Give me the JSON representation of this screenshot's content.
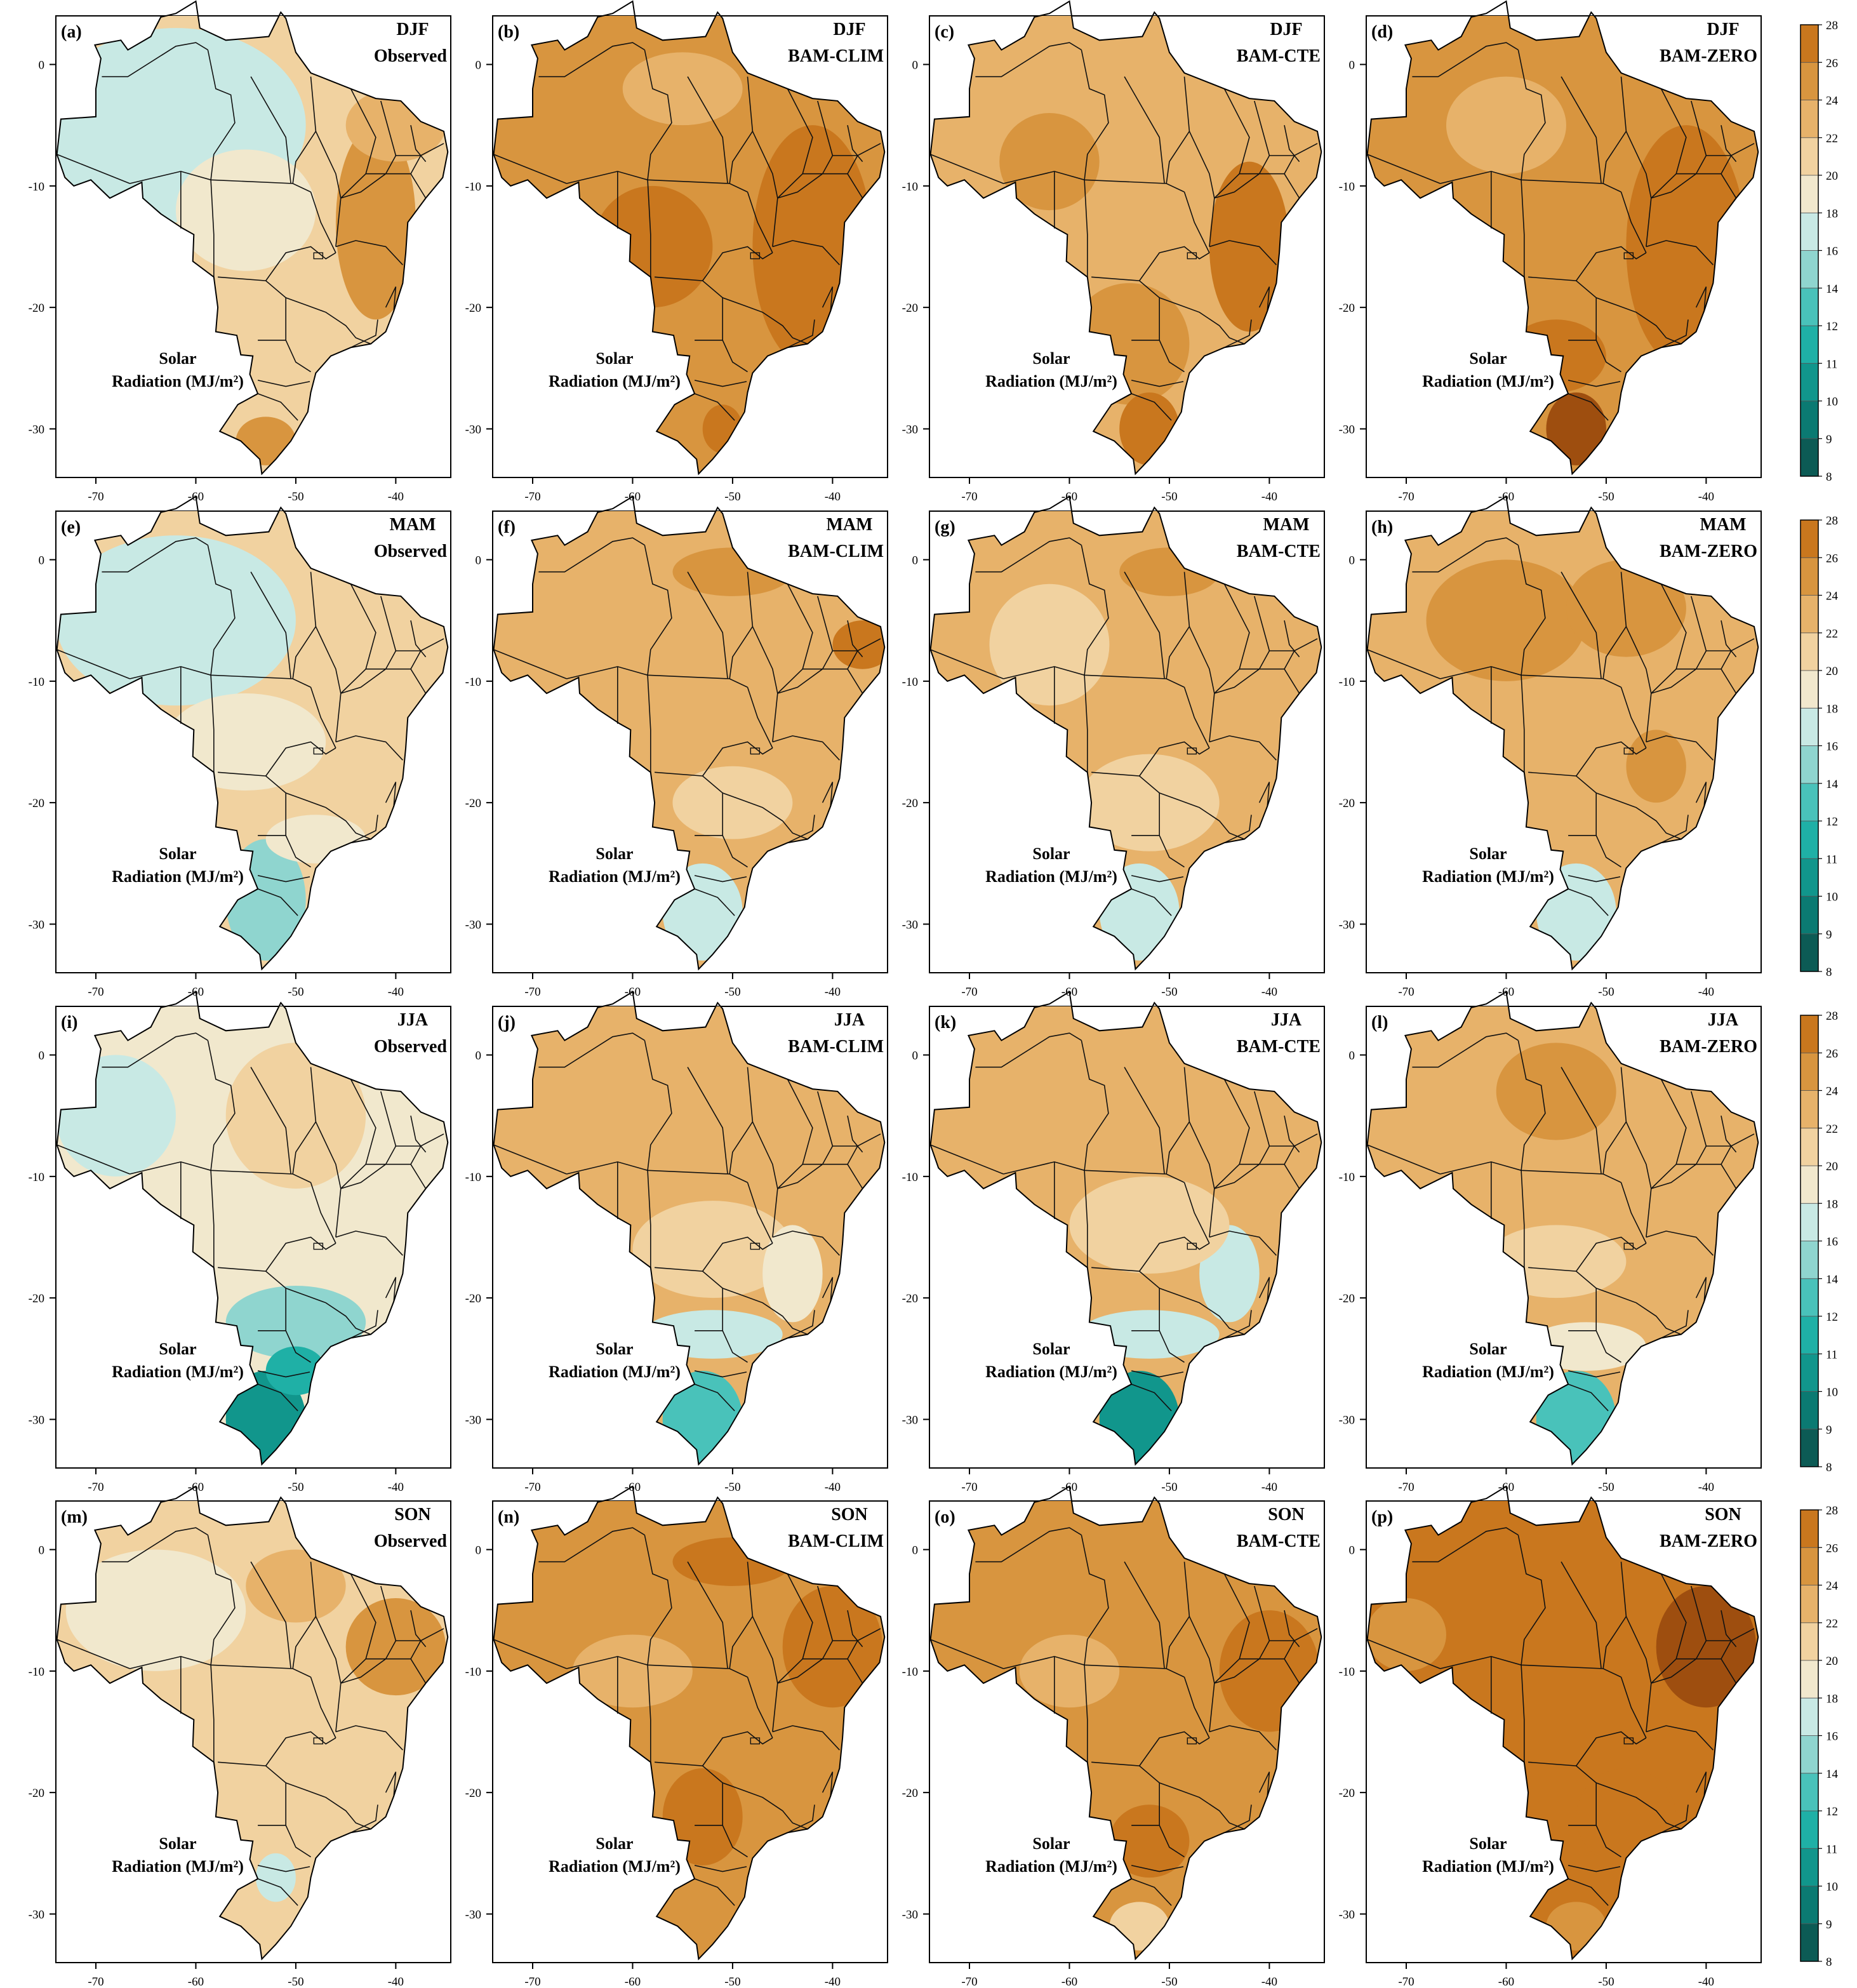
{
  "figure": {
    "radiation_label_line1": "Solar",
    "radiation_label_line2": "Radiation (MJ/m²)"
  },
  "axes": {
    "lon_ticks": [
      -70,
      -60,
      -50,
      -40
    ],
    "lat_ticks": [
      0,
      -10,
      -20,
      -30
    ],
    "lon_range": [
      -74,
      -34.5
    ],
    "lat_range": [
      -34,
      4
    ]
  },
  "colorbar": {
    "levels": [
      8,
      9,
      10,
      11,
      12,
      14,
      16,
      18,
      20,
      22,
      24,
      26,
      28
    ],
    "colors": [
      "#0c5b55",
      "#0b7a72",
      "#11968c",
      "#1fb0a6",
      "#49c2ba",
      "#8fd5cf",
      "#c8e9e4",
      "#f1e8cd",
      "#f1d2a0",
      "#e7b26a",
      "#d8953f",
      "#c9771e",
      "#9e4e0f"
    ]
  },
  "panels": [
    {
      "id": "(a)",
      "season": "DJF",
      "source": "Observed",
      "bg": "#f1d2a0",
      "blobs": [
        {
          "lon": -62,
          "lat": -5,
          "rx": 13,
          "ry": 8,
          "c": "#c8e9e4"
        },
        {
          "lon": -55,
          "lat": -12,
          "rx": 7,
          "ry": 5,
          "c": "#f1e8cd"
        },
        {
          "lon": -42,
          "lat": -13,
          "rx": 4,
          "ry": 8,
          "c": "#d8953f"
        },
        {
          "lon": -53,
          "lat": -31,
          "rx": 3,
          "ry": 2,
          "c": "#d8953f"
        },
        {
          "lon": -40,
          "lat": -5,
          "rx": 5,
          "ry": 3,
          "c": "#e7b26a"
        }
      ]
    },
    {
      "id": "(b)",
      "season": "DJF",
      "source": "BAM-CLIM",
      "bg": "#d8953f",
      "blobs": [
        {
          "lon": -42,
          "lat": -15,
          "rx": 6,
          "ry": 10,
          "c": "#c9771e"
        },
        {
          "lon": -58,
          "lat": -15,
          "rx": 6,
          "ry": 5,
          "c": "#c9771e"
        },
        {
          "lon": -55,
          "lat": -2,
          "rx": 6,
          "ry": 3,
          "c": "#e7b26a"
        },
        {
          "lon": -51,
          "lat": -30,
          "rx": 2,
          "ry": 2,
          "c": "#c9771e"
        }
      ]
    },
    {
      "id": "(c)",
      "season": "DJF",
      "source": "BAM-CTE",
      "bg": "#e7b26a",
      "blobs": [
        {
          "lon": -42,
          "lat": -15,
          "rx": 4,
          "ry": 7,
          "c": "#c9771e"
        },
        {
          "lon": -54,
          "lat": -23,
          "rx": 6,
          "ry": 5,
          "c": "#d8953f"
        },
        {
          "lon": -52,
          "lat": -30,
          "rx": 3,
          "ry": 3,
          "c": "#c9771e"
        },
        {
          "lon": -62,
          "lat": -8,
          "rx": 5,
          "ry": 4,
          "c": "#d8953f"
        }
      ]
    },
    {
      "id": "(d)",
      "season": "DJF",
      "source": "BAM-ZERO",
      "bg": "#d8953f",
      "blobs": [
        {
          "lon": -42,
          "lat": -15,
          "rx": 6,
          "ry": 10,
          "c": "#c9771e"
        },
        {
          "lon": -53,
          "lat": -30,
          "rx": 3,
          "ry": 3,
          "c": "#9e4e0f"
        },
        {
          "lon": -55,
          "lat": -24,
          "rx": 5,
          "ry": 3,
          "c": "#c9771e"
        },
        {
          "lon": -60,
          "lat": -5,
          "rx": 6,
          "ry": 4,
          "c": "#e7b26a"
        }
      ]
    },
    {
      "id": "(e)",
      "season": "MAM",
      "source": "Observed",
      "bg": "#f1d2a0",
      "blobs": [
        {
          "lon": -62,
          "lat": -5,
          "rx": 12,
          "ry": 7,
          "c": "#c8e9e4"
        },
        {
          "lon": -53,
          "lat": -28,
          "rx": 4,
          "ry": 5,
          "c": "#8fd5cf"
        },
        {
          "lon": -55,
          "lat": -15,
          "rx": 8,
          "ry": 4,
          "c": "#f1e8cd"
        },
        {
          "lon": -48,
          "lat": -23,
          "rx": 5,
          "ry": 2,
          "c": "#f1e8cd"
        }
      ]
    },
    {
      "id": "(f)",
      "season": "MAM",
      "source": "BAM-CLIM",
      "bg": "#e7b26a",
      "blobs": [
        {
          "lon": -53,
          "lat": -29,
          "rx": 4,
          "ry": 4,
          "c": "#c8e9e4"
        },
        {
          "lon": -50,
          "lat": -20,
          "rx": 6,
          "ry": 3,
          "c": "#f1d2a0"
        },
        {
          "lon": -50,
          "lat": -1,
          "rx": 6,
          "ry": 2,
          "c": "#d8953f"
        },
        {
          "lon": -37,
          "lat": -7,
          "rx": 3,
          "ry": 2,
          "c": "#c9771e"
        }
      ]
    },
    {
      "id": "(g)",
      "season": "MAM",
      "source": "BAM-CTE",
      "bg": "#e7b26a",
      "blobs": [
        {
          "lon": -53,
          "lat": -29,
          "rx": 4,
          "ry": 4,
          "c": "#c8e9e4"
        },
        {
          "lon": -52,
          "lat": -20,
          "rx": 7,
          "ry": 4,
          "c": "#f1d2a0"
        },
        {
          "lon": -62,
          "lat": -7,
          "rx": 6,
          "ry": 5,
          "c": "#f1d2a0"
        },
        {
          "lon": -50,
          "lat": -1,
          "rx": 5,
          "ry": 2,
          "c": "#d8953f"
        }
      ]
    },
    {
      "id": "(h)",
      "season": "MAM",
      "source": "BAM-ZERO",
      "bg": "#e7b26a",
      "blobs": [
        {
          "lon": -53,
          "lat": -29,
          "rx": 4,
          "ry": 4,
          "c": "#c8e9e4"
        },
        {
          "lon": -60,
          "lat": -5,
          "rx": 8,
          "ry": 5,
          "c": "#d8953f"
        },
        {
          "lon": -48,
          "lat": -4,
          "rx": 6,
          "ry": 4,
          "c": "#d8953f"
        },
        {
          "lon": -45,
          "lat": -17,
          "rx": 3,
          "ry": 3,
          "c": "#d8953f"
        }
      ]
    },
    {
      "id": "(i)",
      "season": "JJA",
      "source": "Observed",
      "bg": "#f1e8cd",
      "blobs": [
        {
          "lon": -68,
          "lat": -5,
          "rx": 6,
          "ry": 5,
          "c": "#c8e9e4"
        },
        {
          "lon": -50,
          "lat": -22,
          "rx": 7,
          "ry": 3,
          "c": "#8fd5cf"
        },
        {
          "lon": -53,
          "lat": -30,
          "rx": 4,
          "ry": 4,
          "c": "#11968c"
        },
        {
          "lon": -50,
          "lat": -26,
          "rx": 3,
          "ry": 2,
          "c": "#1fb0a6"
        },
        {
          "lon": -50,
          "lat": -5,
          "rx": 7,
          "ry": 6,
          "c": "#f1d2a0"
        }
      ]
    },
    {
      "id": "(j)",
      "season": "JJA",
      "source": "BAM-CLIM",
      "bg": "#e7b26a",
      "blobs": [
        {
          "lon": -53,
          "lat": -30,
          "rx": 4,
          "ry": 4,
          "c": "#49c2ba"
        },
        {
          "lon": -52,
          "lat": -23,
          "rx": 7,
          "ry": 2,
          "c": "#c8e9e4"
        },
        {
          "lon": -52,
          "lat": -16,
          "rx": 8,
          "ry": 4,
          "c": "#f1d2a0"
        },
        {
          "lon": -44,
          "lat": -18,
          "rx": 3,
          "ry": 4,
          "c": "#f1e8cd"
        }
      ]
    },
    {
      "id": "(k)",
      "season": "JJA",
      "source": "BAM-CTE",
      "bg": "#e7b26a",
      "blobs": [
        {
          "lon": -53,
          "lat": -30,
          "rx": 4,
          "ry": 4,
          "c": "#11968c"
        },
        {
          "lon": -52,
          "lat": -23,
          "rx": 7,
          "ry": 2,
          "c": "#c8e9e4"
        },
        {
          "lon": -44,
          "lat": -18,
          "rx": 3,
          "ry": 4,
          "c": "#c8e9e4"
        },
        {
          "lon": -52,
          "lat": -14,
          "rx": 8,
          "ry": 4,
          "c": "#f1d2a0"
        }
      ]
    },
    {
      "id": "(l)",
      "season": "JJA",
      "source": "BAM-ZERO",
      "bg": "#e7b26a",
      "blobs": [
        {
          "lon": -53,
          "lat": -30,
          "rx": 4,
          "ry": 4,
          "c": "#49c2ba"
        },
        {
          "lon": -52,
          "lat": -24,
          "rx": 6,
          "ry": 2,
          "c": "#f1e8cd"
        },
        {
          "lon": -55,
          "lat": -17,
          "rx": 7,
          "ry": 3,
          "c": "#f1d2a0"
        },
        {
          "lon": -55,
          "lat": -3,
          "rx": 6,
          "ry": 4,
          "c": "#d8953f"
        }
      ]
    },
    {
      "id": "(m)",
      "season": "SON",
      "source": "Observed",
      "bg": "#f1d2a0",
      "blobs": [
        {
          "lon": -64,
          "lat": -5,
          "rx": 9,
          "ry": 5,
          "c": "#f1e8cd"
        },
        {
          "lon": -40,
          "lat": -8,
          "rx": 5,
          "ry": 4,
          "c": "#d8953f"
        },
        {
          "lon": -52,
          "lat": -27,
          "rx": 2,
          "ry": 2,
          "c": "#c8e9e4"
        },
        {
          "lon": -50,
          "lat": -3,
          "rx": 5,
          "ry": 3,
          "c": "#e7b26a"
        }
      ]
    },
    {
      "id": "(n)",
      "season": "SON",
      "source": "BAM-CLIM",
      "bg": "#d8953f",
      "blobs": [
        {
          "lon": -40,
          "lat": -8,
          "rx": 5,
          "ry": 5,
          "c": "#c9771e"
        },
        {
          "lon": -53,
          "lat": -22,
          "rx": 4,
          "ry": 4,
          "c": "#c9771e"
        },
        {
          "lon": -60,
          "lat": -10,
          "rx": 6,
          "ry": 3,
          "c": "#e7b26a"
        },
        {
          "lon": -50,
          "lat": -1,
          "rx": 6,
          "ry": 2,
          "c": "#c9771e"
        }
      ]
    },
    {
      "id": "(o)",
      "season": "SON",
      "source": "BAM-CTE",
      "bg": "#d8953f",
      "blobs": [
        {
          "lon": -40,
          "lat": -10,
          "rx": 5,
          "ry": 5,
          "c": "#c9771e"
        },
        {
          "lon": -53,
          "lat": -31,
          "rx": 3,
          "ry": 2,
          "c": "#f1d2a0"
        },
        {
          "lon": -60,
          "lat": -10,
          "rx": 5,
          "ry": 3,
          "c": "#e7b26a"
        },
        {
          "lon": -52,
          "lat": -24,
          "rx": 4,
          "ry": 3,
          "c": "#c9771e"
        }
      ]
    },
    {
      "id": "(p)",
      "season": "SON",
      "source": "BAM-ZERO",
      "bg": "#c9771e",
      "blobs": [
        {
          "lon": -40,
          "lat": -8,
          "rx": 5,
          "ry": 5,
          "c": "#9e4e0f"
        },
        {
          "lon": -53,
          "lat": -31,
          "rx": 3,
          "ry": 2,
          "c": "#d8953f"
        },
        {
          "lon": -70,
          "lat": -7,
          "rx": 4,
          "ry": 3,
          "c": "#d8953f"
        },
        {
          "lon": -48,
          "lat": -22,
          "rx": 5,
          "ry": 4,
          "c": "#c9771e"
        }
      ]
    }
  ]
}
